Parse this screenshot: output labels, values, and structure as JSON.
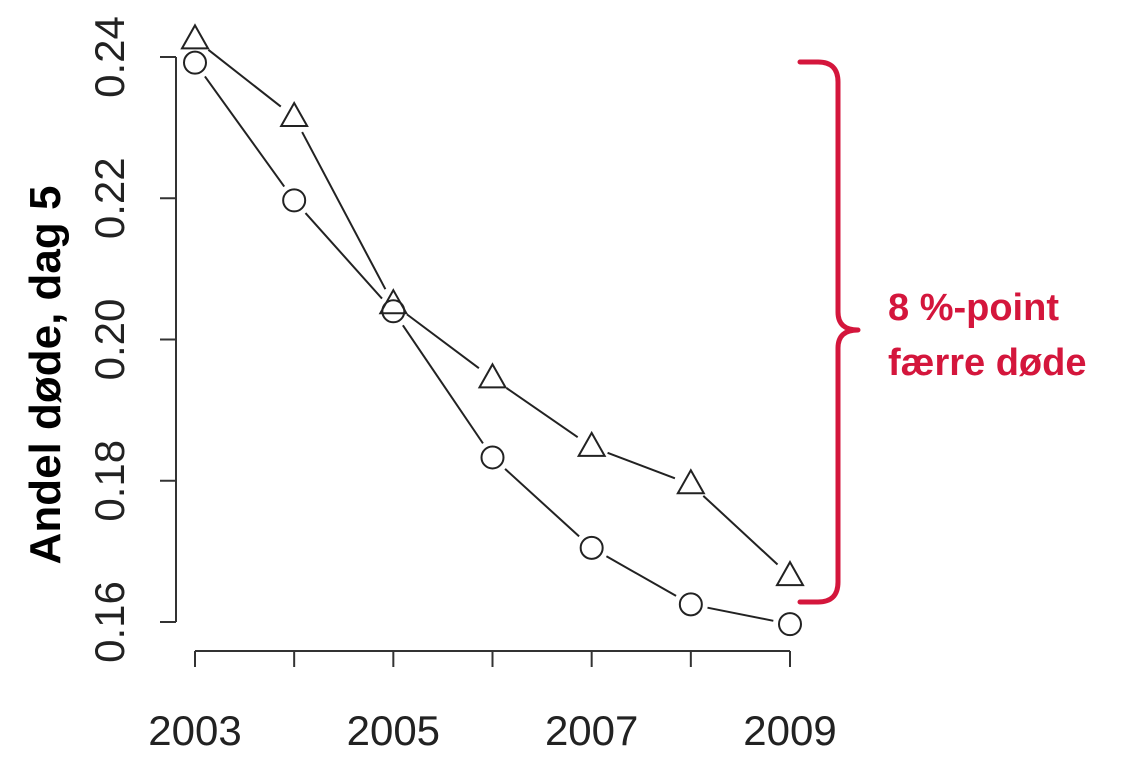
{
  "chart_data": {
    "type": "line",
    "title": "",
    "xlabel": "",
    "ylabel": "Andel døde, dag 5",
    "x": [
      2003,
      2004,
      2005,
      2006,
      2007,
      2008,
      2009
    ],
    "xticks": [
      "2003",
      "2005",
      "2007",
      "2009"
    ],
    "yticks": [
      "0.16",
      "0.18",
      "0.20",
      "0.22",
      "0.24"
    ],
    "xlim": [
      2003,
      2009
    ],
    "ylim": [
      0.16,
      0.24
    ],
    "grid": false,
    "series": [
      {
        "marker": "triangle",
        "values": [
          0.2425,
          0.2315,
          0.205,
          0.1945,
          0.1848,
          0.1795,
          0.1665
        ]
      },
      {
        "marker": "circle",
        "values": [
          0.2392,
          0.2197,
          0.204,
          0.1833,
          0.1705,
          0.1625,
          0.1597
        ]
      }
    ],
    "annotation": {
      "lines": [
        "8 %-point",
        "færre døde"
      ],
      "color": "#d4163c"
    }
  }
}
